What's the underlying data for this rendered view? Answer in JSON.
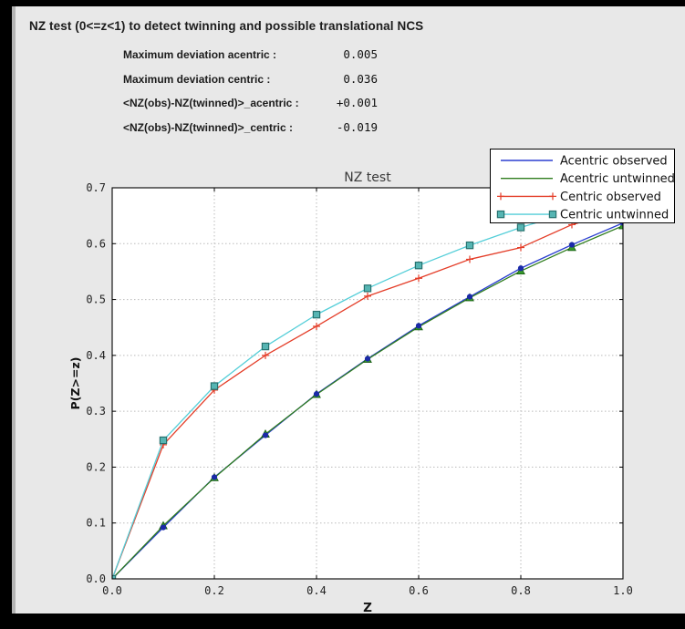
{
  "window": {
    "title": "NZ test (0<=z<1) to detect twinning and possible translational NCS"
  },
  "stats": [
    {
      "label": "Maximum deviation acentric :",
      "value": "0.005"
    },
    {
      "label": "Maximum deviation centric :",
      "value": "0.036"
    },
    {
      "label": "<NZ(obs)-NZ(twinned)>_acentric :",
      "value": "+0.001"
    },
    {
      "label": "<NZ(obs)-NZ(twinned)>_centric :",
      "value": "-0.019"
    }
  ],
  "chart_data": {
    "type": "line",
    "title": "NZ test",
    "xlabel": "Z",
    "ylabel": "P(Z>=z)",
    "xlim": [
      0.0,
      1.0
    ],
    "ylim": [
      0.0,
      0.7
    ],
    "xticks": [
      0.0,
      0.2,
      0.4,
      0.6,
      0.8,
      1.0
    ],
    "xtick_labels": [
      "0.0",
      "0.2",
      "0.4",
      "0.6",
      "0.8",
      "1.0"
    ],
    "yticks": [
      0.0,
      0.1,
      0.2,
      0.3,
      0.4,
      0.5,
      0.6,
      0.7
    ],
    "ytick_labels": [
      "0.0",
      "0.1",
      "0.2",
      "0.3",
      "0.4",
      "0.5",
      "0.6",
      "0.7"
    ],
    "grid": true,
    "grid_color": "#bbbbbb",
    "plot_bg": "#ffffff",
    "figure_bg": "#e8e8e8",
    "legend_position": "upper right",
    "x": [
      0.0,
      0.1,
      0.2,
      0.3,
      0.4,
      0.5,
      0.6,
      0.7,
      0.8,
      0.9,
      1.0
    ],
    "series": [
      {
        "name": "Acentric observed",
        "color": "#2b3fd0",
        "marker": "circle",
        "marker_fill": "#1b2aa8",
        "legend_marker": "none",
        "values": [
          0.0,
          0.092,
          0.182,
          0.257,
          0.331,
          0.394,
          0.453,
          0.505,
          0.556,
          0.598,
          0.637
        ]
      },
      {
        "name": "Acentric untwinned",
        "color": "#2f7d1e",
        "marker": "triangle",
        "marker_fill": "#379a2a",
        "marker_edge": "#145910",
        "legend_marker": "none",
        "values": [
          0.0,
          0.095,
          0.181,
          0.259,
          0.33,
          0.393,
          0.451,
          0.503,
          0.551,
          0.593,
          0.632
        ]
      },
      {
        "name": "Centric observed",
        "color": "#e43d28",
        "marker": "plus",
        "legend_marker": "plus",
        "values": [
          0.0,
          0.24,
          0.338,
          0.4,
          0.452,
          0.506,
          0.538,
          0.572,
          0.593,
          0.634,
          0.66
        ]
      },
      {
        "name": "Centric untwinned",
        "color": "#53ced8",
        "marker": "square",
        "marker_fill": "#56b5b3",
        "marker_edge": "#26716e",
        "legend_marker": "square",
        "values": [
          0.0,
          0.248,
          0.345,
          0.416,
          0.473,
          0.52,
          0.561,
          0.597,
          0.629,
          0.657,
          0.683
        ]
      }
    ]
  }
}
